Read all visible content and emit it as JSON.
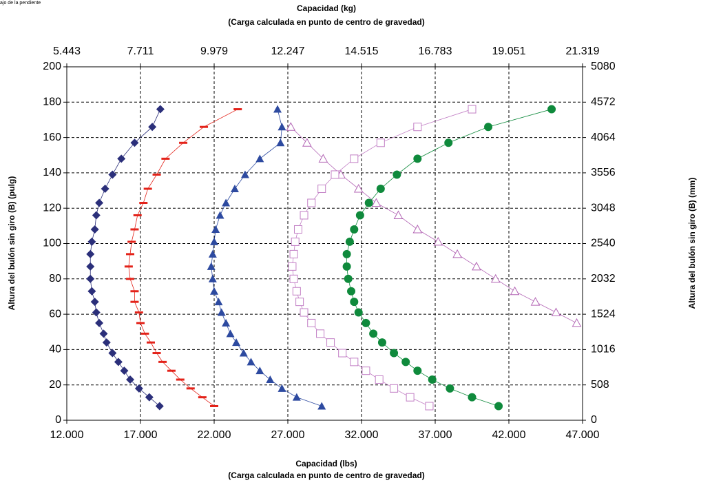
{
  "chart_data": {
    "type": "scatter",
    "annotation": "ajo de la pendiente",
    "title": "Capacidad (kg)",
    "subtitle": "(Carga calculada en punto de centro de gravedad)",
    "xlabel": "Capacidad (lbs)",
    "xlabel_sub": "(Carga calculada en punto de centro de gravedad)",
    "ylabel": "Altura del bulón sin giro (B) (pulg)",
    "y2label": "Altura del bulón sin giro (B) (mm)",
    "xlim": [
      12,
      47
    ],
    "xticks": [
      {
        "value": 12,
        "label": "12.000"
      },
      {
        "value": 17,
        "label": "17.000"
      },
      {
        "value": 22,
        "label": "22.000"
      },
      {
        "value": 27,
        "label": "27.000"
      },
      {
        "value": 32,
        "label": "32.000"
      },
      {
        "value": 37,
        "label": "37.000"
      },
      {
        "value": 42,
        "label": "42.000"
      },
      {
        "value": 47,
        "label": "47.000"
      }
    ],
    "x2lim": [
      5.443,
      21.319
    ],
    "x2ticks": [
      5.443,
      7.711,
      9.979,
      12.247,
      14.515,
      16.783,
      19.051,
      21.319
    ],
    "ylim": [
      0,
      200
    ],
    "yticks": [
      0,
      20,
      40,
      60,
      80,
      100,
      120,
      140,
      160,
      180,
      200
    ],
    "y2lim": [
      0,
      5080
    ],
    "y2ticks": [
      0,
      508,
      1016,
      1524,
      2032,
      2540,
      3048,
      3556,
      4064,
      4572,
      5080
    ],
    "grid": true,
    "series": [
      {
        "color": "#2b2f7a",
        "marker": "diamond",
        "x": [
          18.35,
          17.8,
          16.6,
          15.7,
          15.1,
          14.6,
          14.2,
          14.0,
          13.9,
          13.7,
          13.6,
          13.6,
          13.6,
          13.7,
          13.9,
          14.0,
          14.2,
          14.5,
          14.7,
          15.1,
          15.5,
          15.9,
          16.3,
          16.9,
          17.6,
          18.3
        ],
        "y": [
          176,
          166,
          157,
          148,
          139,
          131,
          123,
          116,
          108,
          101,
          94,
          87,
          80,
          73,
          67,
          61,
          55,
          49,
          44,
          38,
          33,
          28,
          23,
          18,
          13,
          8
        ]
      },
      {
        "color": "#e32219",
        "marker": "dash",
        "x": [
          23.6,
          21.3,
          19.9,
          18.7,
          18.1,
          17.5,
          17.2,
          16.8,
          16.6,
          16.4,
          16.3,
          16.2,
          16.3,
          16.6,
          16.6,
          16.9,
          17.0,
          17.3,
          17.7,
          18.1,
          18.5,
          19.1,
          19.7,
          20.4,
          21.2,
          22.0
        ],
        "y": [
          176,
          166,
          157,
          148,
          139,
          131,
          123,
          116,
          108,
          101,
          94,
          87,
          80,
          73,
          67,
          61,
          55,
          49,
          44,
          38,
          33,
          28,
          23,
          18,
          13,
          8
        ]
      },
      {
        "color": "#2d4aa0",
        "marker": "triangle",
        "x": [
          26.3,
          26.6,
          26.5,
          25.1,
          24.1,
          23.4,
          22.8,
          22.4,
          22.1,
          22.0,
          21.9,
          21.8,
          21.9,
          22.0,
          22.3,
          22.5,
          22.8,
          23.1,
          23.5,
          24.0,
          24.5,
          25.1,
          25.8,
          26.6,
          27.6,
          29.3
        ],
        "y": [
          176,
          166,
          157,
          148,
          139,
          131,
          123,
          116,
          108,
          101,
          94,
          87,
          80,
          73,
          67,
          61,
          55,
          49,
          44,
          38,
          33,
          28,
          23,
          18,
          13,
          8
        ]
      },
      {
        "color": "#b366b5",
        "marker": "open-triangle",
        "x": [
          27.2,
          28.3,
          29.4,
          30.6,
          31.8,
          33.0,
          34.5,
          35.8,
          37.2,
          38.5,
          39.8,
          41.1,
          42.4,
          43.8,
          45.2,
          46.6
        ],
        "y": [
          166,
          157,
          148,
          139,
          131,
          123,
          116,
          108,
          101,
          94,
          87,
          80,
          73,
          67,
          61,
          55
        ]
      },
      {
        "color": "#c27fc5",
        "marker": "open-square",
        "x": [
          39.5,
          35.8,
          33.3,
          31.5,
          30.2,
          29.3,
          28.6,
          28.1,
          27.7,
          27.5,
          27.4,
          27.3,
          27.4,
          27.6,
          27.8,
          28.1,
          28.6,
          29.2,
          29.9,
          30.7,
          31.5,
          32.3,
          33.2,
          34.2,
          35.3,
          36.6
        ],
        "y": [
          176,
          166,
          157,
          148,
          139,
          131,
          123,
          116,
          108,
          101,
          94,
          87,
          80,
          73,
          67,
          61,
          55,
          49,
          44,
          38,
          33,
          28,
          23,
          18,
          13,
          8
        ]
      },
      {
        "color": "#0f8a3c",
        "marker": "circle",
        "x": [
          44.9,
          40.6,
          37.9,
          35.8,
          34.4,
          33.3,
          32.5,
          31.9,
          31.5,
          31.2,
          31.0,
          31.0,
          31.1,
          31.3,
          31.5,
          31.8,
          32.3,
          32.8,
          33.4,
          34.2,
          35.0,
          35.8,
          36.8,
          38.0,
          39.5,
          41.3
        ],
        "y": [
          176,
          166,
          157,
          148,
          139,
          131,
          123,
          116,
          108,
          101,
          94,
          87,
          80,
          73,
          67,
          61,
          55,
          49,
          44,
          38,
          33,
          28,
          23,
          18,
          13,
          8
        ]
      }
    ]
  }
}
